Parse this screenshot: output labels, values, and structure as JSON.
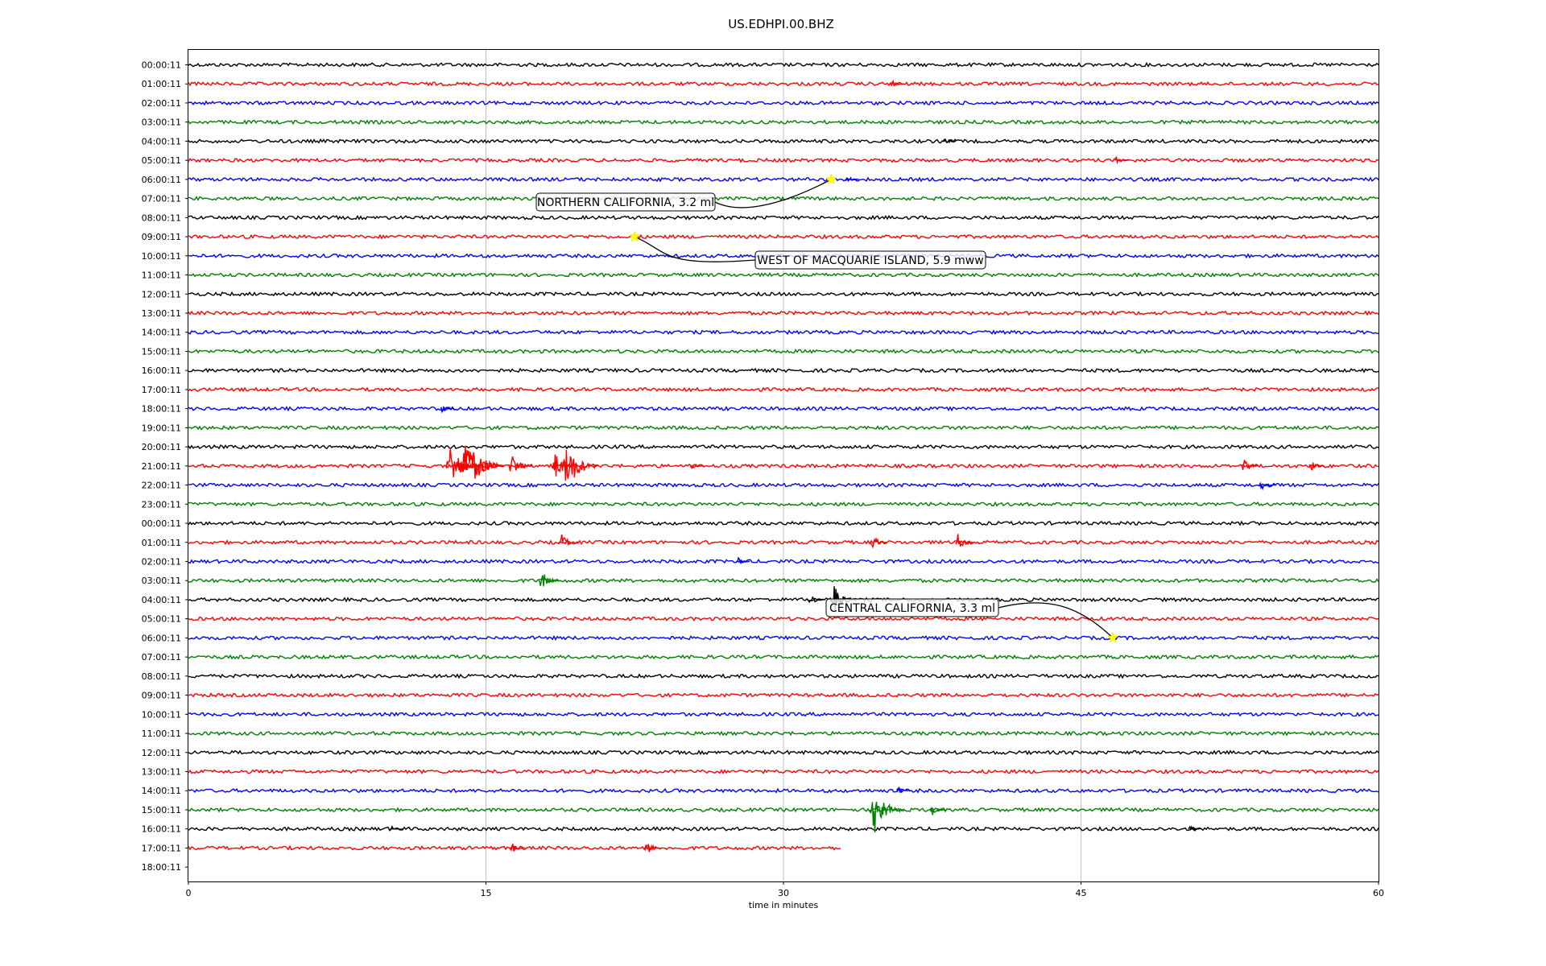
{
  "chart_data": {
    "type": "line",
    "title": "US.EDHPI.00.BHZ",
    "xlabel": "time in minutes",
    "ylabel": "",
    "xlim": [
      0,
      60
    ],
    "xticks": [
      0,
      15,
      30,
      45,
      60
    ],
    "grid": "vertical",
    "colors": [
      "#000000",
      "#ff0000",
      "#0000ff",
      "#008000"
    ],
    "rows": [
      "00:00:11",
      "01:00:11",
      "02:00:11",
      "03:00:11",
      "04:00:11",
      "05:00:11",
      "06:00:11",
      "07:00:11",
      "08:00:11",
      "09:00:11",
      "10:00:11",
      "11:00:11",
      "12:00:11",
      "13:00:11",
      "14:00:11",
      "15:00:11",
      "16:00:11",
      "17:00:11",
      "18:00:11",
      "19:00:11",
      "20:00:11",
      "21:00:11",
      "22:00:11",
      "23:00:11",
      "00:00:11",
      "01:00:11",
      "02:00:11",
      "03:00:11",
      "04:00:11",
      "05:00:11",
      "06:00:11",
      "07:00:11",
      "08:00:11",
      "09:00:11",
      "10:00:11",
      "11:00:11",
      "12:00:11",
      "13:00:11",
      "14:00:11",
      "15:00:11",
      "16:00:11",
      "17:00:11",
      "18:00:11"
    ],
    "last_trace_end_minute": 32.9,
    "bursts": [
      {
        "row": 1,
        "minute": 35.5,
        "amp": 0.3
      },
      {
        "row": 4,
        "minute": 38.1,
        "amp": 0.3
      },
      {
        "row": 5,
        "minute": 46.8,
        "amp": 0.3
      },
      {
        "row": 6,
        "minute": 33.2,
        "amp": 0.3
      },
      {
        "row": 18,
        "minute": 12.8,
        "amp": 0.3
      },
      {
        "row": 21,
        "minute": 13.2,
        "amp": 1.6
      },
      {
        "row": 21,
        "minute": 13.9,
        "amp": 2.2
      },
      {
        "row": 21,
        "minute": 14.8,
        "amp": 0.9
      },
      {
        "row": 21,
        "minute": 16.3,
        "amp": 0.9
      },
      {
        "row": 21,
        "minute": 18.5,
        "amp": 1.0
      },
      {
        "row": 21,
        "minute": 19.1,
        "amp": 1.7
      },
      {
        "row": 21,
        "minute": 25.4,
        "amp": 0.3
      },
      {
        "row": 21,
        "minute": 53.2,
        "amp": 0.5
      },
      {
        "row": 21,
        "minute": 56.6,
        "amp": 0.4
      },
      {
        "row": 22,
        "minute": 54.1,
        "amp": 0.4
      },
      {
        "row": 25,
        "minute": 18.8,
        "amp": 0.7
      },
      {
        "row": 25,
        "minute": 34.5,
        "amp": 0.5
      },
      {
        "row": 25,
        "minute": 38.8,
        "amp": 0.6
      },
      {
        "row": 26,
        "minute": 27.7,
        "amp": 0.3
      },
      {
        "row": 27,
        "minute": 17.8,
        "amp": 0.7
      },
      {
        "row": 28,
        "minute": 32.5,
        "amp": 1.1
      },
      {
        "row": 28,
        "minute": 31.3,
        "amp": 0.5
      },
      {
        "row": 38,
        "minute": 35.8,
        "amp": 0.3
      },
      {
        "row": 39,
        "minute": 34.6,
        "amp": 1.6
      },
      {
        "row": 39,
        "minute": 37.5,
        "amp": 0.4
      },
      {
        "row": 40,
        "minute": 10.2,
        "amp": 0.3
      },
      {
        "row": 40,
        "minute": 50.5,
        "amp": 0.3
      },
      {
        "row": 41,
        "minute": 16.3,
        "amp": 0.4
      },
      {
        "row": 41,
        "minute": 23.1,
        "amp": 0.5
      }
    ],
    "annotations": [
      {
        "label": "NORTHERN CALIFORNIA, 3.2 ml",
        "row": 6,
        "minute": 32.4
      },
      {
        "label": "WEST OF MACQUARIE ISLAND, 5.9 mww",
        "row": 9,
        "minute": 22.5
      },
      {
        "label": "CENTRAL CALIFORNIA, 3.3 ml",
        "row": 30,
        "minute": 46.6
      }
    ]
  }
}
